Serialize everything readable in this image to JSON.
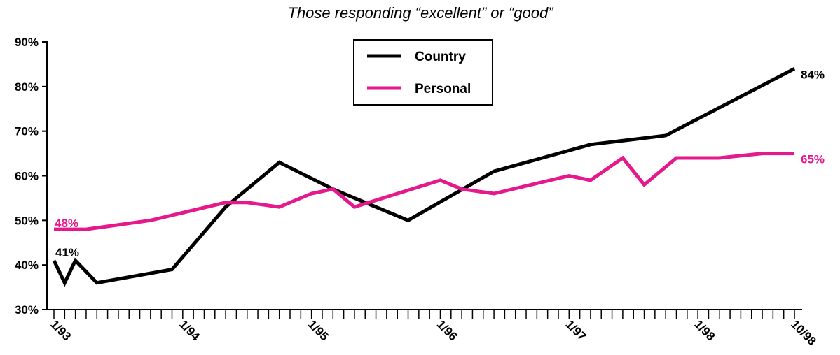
{
  "chart_data": {
    "type": "line",
    "title": "Those responding “excellent” or “good”",
    "xlabel": "",
    "ylabel": "",
    "ylim": [
      30,
      90
    ],
    "y_ticks": [
      30,
      40,
      50,
      60,
      70,
      80,
      90
    ],
    "y_tick_labels": [
      "30%",
      "40%",
      "50%",
      "60%",
      "70%",
      "80%",
      "90%"
    ],
    "x_range_months": [
      "1/93",
      "10/98"
    ],
    "x_tick_labels": [
      {
        "label": "1/93",
        "date": "1/93"
      },
      {
        "label": "1/94",
        "date": "1/94"
      },
      {
        "label": "1/95",
        "date": "1/95"
      },
      {
        "label": "1/96",
        "date": "1/96"
      },
      {
        "label": "1/97",
        "date": "1/97"
      },
      {
        "label": "1/98",
        "date": "1/98"
      },
      {
        "label": "10/98",
        "date": "10/98"
      }
    ],
    "legend": {
      "placement": "top-center"
    },
    "grid": false,
    "series": [
      {
        "name": "Country",
        "color": "#000000",
        "points": [
          {
            "x": "1/93",
            "y": 41
          },
          {
            "x": "2/93",
            "y": 36
          },
          {
            "x": "3/93",
            "y": 41
          },
          {
            "x": "5/93",
            "y": 36
          },
          {
            "x": "12/93",
            "y": 39
          },
          {
            "x": "5/94",
            "y": 53
          },
          {
            "x": "10/94",
            "y": 63
          },
          {
            "x": "3/95",
            "y": 57
          },
          {
            "x": "10/95",
            "y": 50
          },
          {
            "x": "6/96",
            "y": 61
          },
          {
            "x": "3/97",
            "y": 67
          },
          {
            "x": "10/97",
            "y": 69
          },
          {
            "x": "10/98",
            "y": 84
          }
        ],
        "start_label": "41%",
        "end_label": "84%"
      },
      {
        "name": "Personal",
        "color": "#e6198c",
        "points": [
          {
            "x": "1/93",
            "y": 48
          },
          {
            "x": "4/93",
            "y": 48
          },
          {
            "x": "10/93",
            "y": 50
          },
          {
            "x": "5/94",
            "y": 54
          },
          {
            "x": "7/94",
            "y": 54
          },
          {
            "x": "10/94",
            "y": 53
          },
          {
            "x": "1/95",
            "y": 56
          },
          {
            "x": "3/95",
            "y": 57
          },
          {
            "x": "5/95",
            "y": 53
          },
          {
            "x": "1/96",
            "y": 59
          },
          {
            "x": "3/96",
            "y": 57
          },
          {
            "x": "6/96",
            "y": 56
          },
          {
            "x": "1/97",
            "y": 60
          },
          {
            "x": "3/97",
            "y": 59
          },
          {
            "x": "6/97",
            "y": 64
          },
          {
            "x": "8/97",
            "y": 58
          },
          {
            "x": "11/97",
            "y": 64
          },
          {
            "x": "3/98",
            "y": 64
          },
          {
            "x": "7/98",
            "y": 65
          },
          {
            "x": "10/98",
            "y": 65
          }
        ],
        "start_label": "48%",
        "end_label": "65%"
      }
    ]
  }
}
